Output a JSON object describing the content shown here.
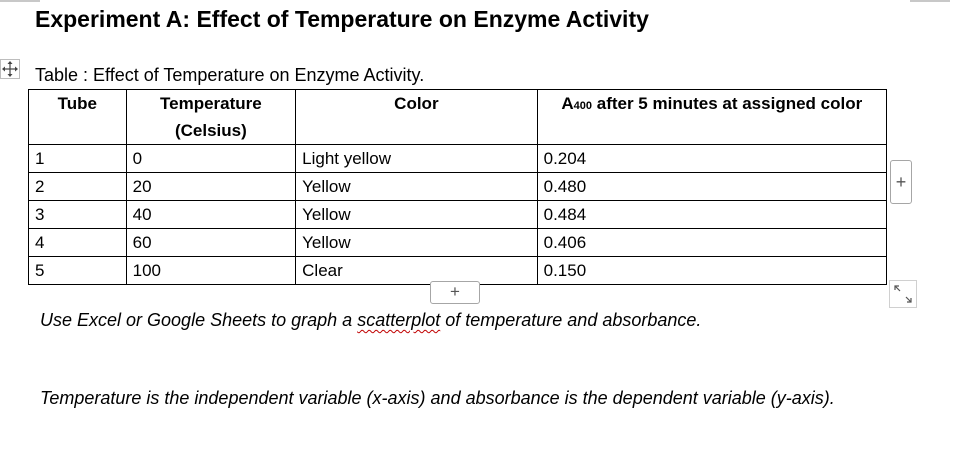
{
  "document": {
    "heading": "Experiment A: Effect of Temperature on Enzyme Activity",
    "caption": "Table : Effect of Temperature on Enzyme Activity.",
    "table": {
      "headers": {
        "tube": "Tube",
        "temperature": "Temperature (Celsius)",
        "color": "Color",
        "absorbance": "A400 after 5 minutes at assigned color"
      },
      "rows": [
        {
          "tube": "1",
          "temperature": "0",
          "color": "Light yellow",
          "absorbance": "0.204"
        },
        {
          "tube": "2",
          "temperature": "20",
          "color": "Yellow",
          "absorbance": "0.480"
        },
        {
          "tube": "3",
          "temperature": "40",
          "color": "Yellow",
          "absorbance": "0.484"
        },
        {
          "tube": "4",
          "temperature": "60",
          "color": "Yellow",
          "absorbance": "0.406"
        },
        {
          "tube": "5",
          "temperature": "100",
          "color": "Clear",
          "absorbance": "0.150"
        }
      ]
    },
    "instructions": {
      "line1_before": "Use Excel or Google Sheets to graph a ",
      "line1_flagged": "scatterplot",
      "line1_after": " of temperature and absorbance.",
      "line2": "Temperature is the independent variable (x-axis) and absorbance is the dependent variable (y-axis)."
    }
  },
  "controls": {
    "add_column_label": "+",
    "add_row_label": "+",
    "move_handle_icon": "move-arrows-icon",
    "resize_handle_icon": "resize-diagonal-icon"
  }
}
